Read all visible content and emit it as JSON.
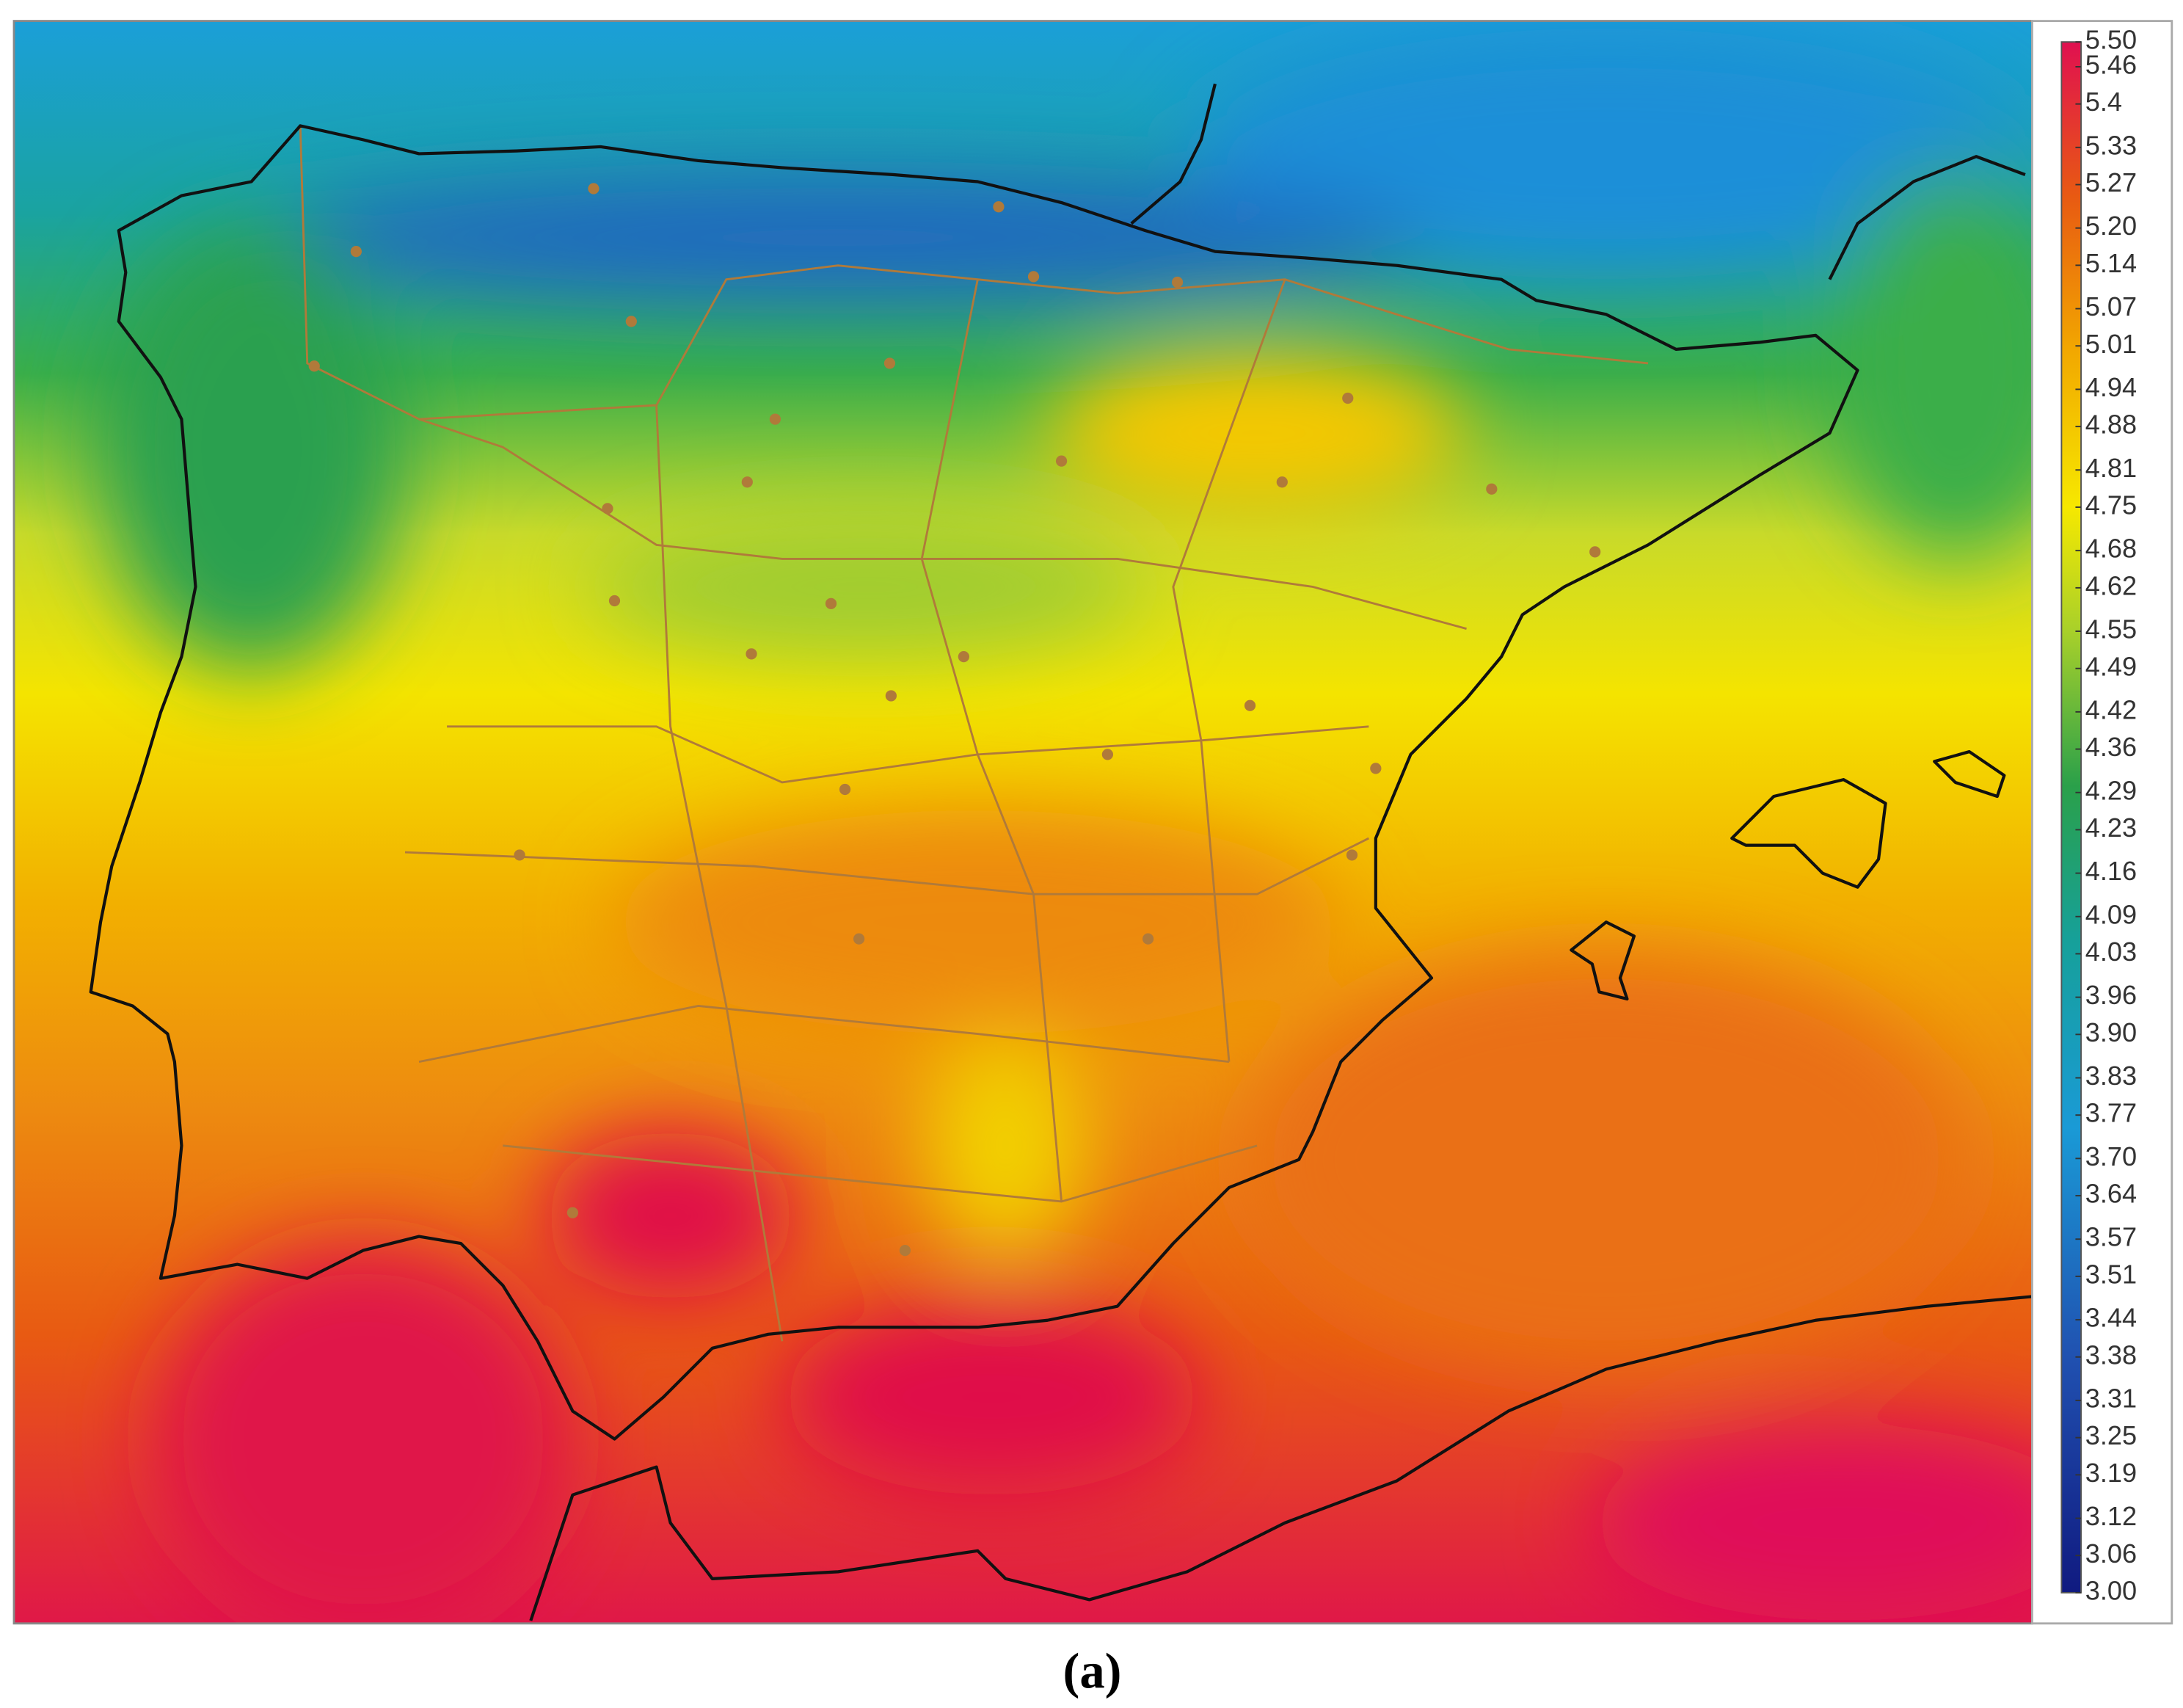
{
  "colorbar": {
    "ticks": [
      {
        "value": 5.5,
        "label": "5.50"
      },
      5.46,
      5.4,
      5.33,
      5.27,
      {
        "value": 5.2,
        "label": "5.20"
      },
      5.14,
      5.07,
      5.01,
      4.94,
      4.88,
      4.81,
      4.75,
      4.68,
      4.62,
      4.55,
      4.49,
      4.42,
      4.36,
      4.29,
      4.23,
      4.16,
      4.09,
      4.03,
      3.96,
      {
        "value": 3.9,
        "label": "3.90"
      },
      3.83,
      3.77,
      {
        "value": 3.7,
        "label": "3.70"
      },
      3.64,
      3.57,
      3.51,
      3.44,
      3.38,
      3.31,
      3.25,
      3.19,
      3.12,
      3.06,
      {
        "value": 3,
        "label": "3.00"
      }
    ]
  },
  "caption": "(a)"
}
